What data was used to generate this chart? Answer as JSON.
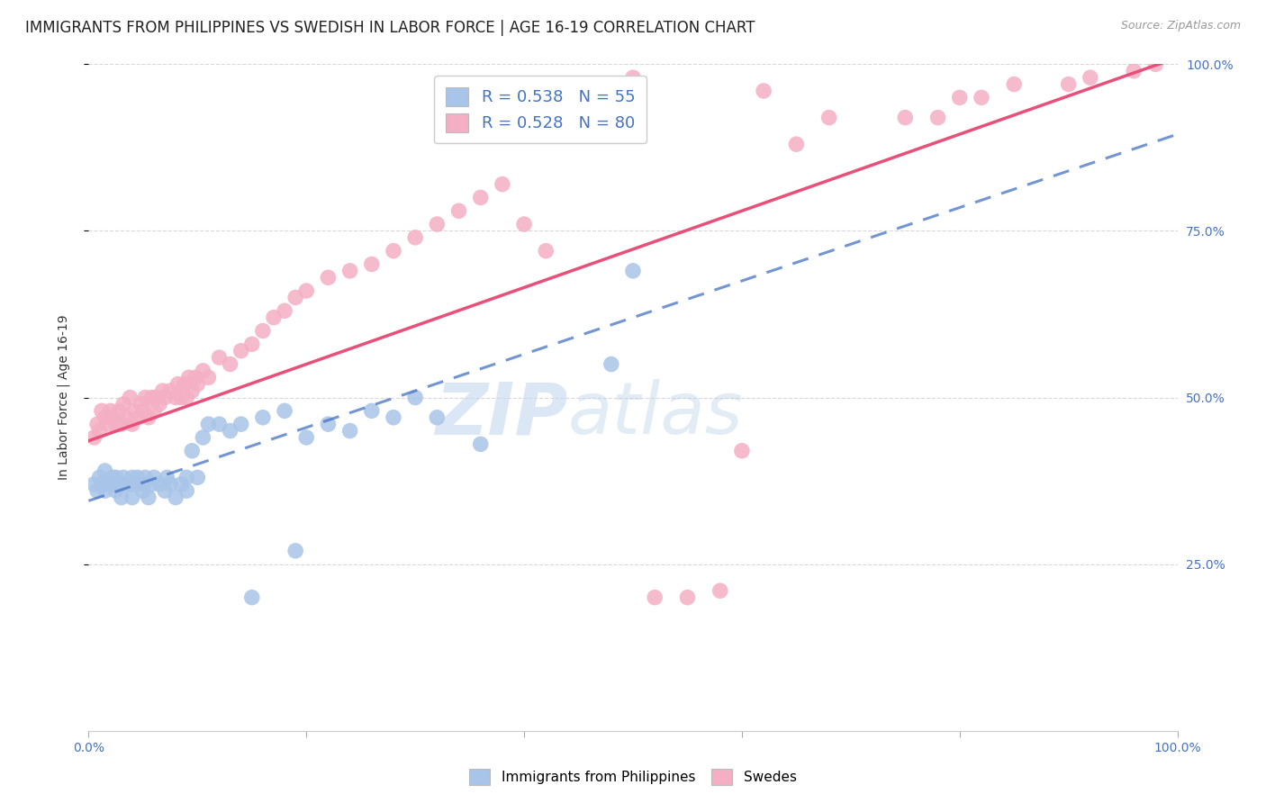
{
  "title": "IMMIGRANTS FROM PHILIPPINES VS SWEDISH IN LABOR FORCE | AGE 16-19 CORRELATION CHART",
  "source": "Source: ZipAtlas.com",
  "ylabel": "In Labor Force | Age 16-19",
  "xlim": [
    0.0,
    1.0
  ],
  "ylim": [
    0.0,
    1.0
  ],
  "xticks": [
    0.0,
    0.2,
    0.4,
    0.6,
    0.8,
    1.0
  ],
  "yticks": [
    0.25,
    0.5,
    0.75,
    1.0
  ],
  "xticklabels": [
    "0.0%",
    "",
    "",
    "",
    "",
    "100.0%"
  ],
  "yticklabels_right": [
    "25.0%",
    "50.0%",
    "75.0%",
    "100.0%"
  ],
  "blue_r": 0.538,
  "blue_n": 55,
  "pink_r": 0.528,
  "pink_n": 80,
  "blue_color": "#a8c4e8",
  "pink_color": "#f4afc4",
  "blue_line_color": "#4472c4",
  "pink_line_color": "#e8507a",
  "watermark_zip": "ZIP",
  "watermark_atlas": "atlas",
  "background_color": "#ffffff",
  "grid_color": "#d8d8d8",
  "title_fontsize": 12,
  "axis_label_fontsize": 10,
  "tick_fontsize": 10,
  "legend_fontsize": 13,
  "blue_scatter_x": [
    0.005,
    0.008,
    0.01,
    0.012,
    0.015,
    0.015,
    0.018,
    0.02,
    0.022,
    0.025,
    0.025,
    0.028,
    0.03,
    0.032,
    0.035,
    0.038,
    0.04,
    0.04,
    0.042,
    0.045,
    0.05,
    0.05,
    0.052,
    0.055,
    0.058,
    0.06,
    0.065,
    0.07,
    0.072,
    0.075,
    0.08,
    0.085,
    0.09,
    0.09,
    0.095,
    0.1,
    0.105,
    0.11,
    0.12,
    0.13,
    0.14,
    0.15,
    0.16,
    0.18,
    0.19,
    0.2,
    0.22,
    0.24,
    0.26,
    0.28,
    0.3,
    0.32,
    0.36,
    0.48,
    0.5
  ],
  "blue_scatter_y": [
    0.37,
    0.36,
    0.38,
    0.37,
    0.36,
    0.39,
    0.37,
    0.37,
    0.38,
    0.36,
    0.38,
    0.37,
    0.35,
    0.38,
    0.37,
    0.37,
    0.35,
    0.38,
    0.37,
    0.38,
    0.37,
    0.36,
    0.38,
    0.35,
    0.37,
    0.38,
    0.37,
    0.36,
    0.38,
    0.37,
    0.35,
    0.37,
    0.36,
    0.38,
    0.42,
    0.38,
    0.44,
    0.46,
    0.46,
    0.45,
    0.46,
    0.2,
    0.47,
    0.48,
    0.27,
    0.44,
    0.46,
    0.45,
    0.48,
    0.47,
    0.5,
    0.47,
    0.43,
    0.55,
    0.69
  ],
  "pink_scatter_x": [
    0.005,
    0.008,
    0.01,
    0.012,
    0.015,
    0.018,
    0.02,
    0.022,
    0.025,
    0.028,
    0.03,
    0.032,
    0.035,
    0.038,
    0.04,
    0.042,
    0.045,
    0.048,
    0.05,
    0.052,
    0.055,
    0.058,
    0.06,
    0.062,
    0.065,
    0.068,
    0.07,
    0.075,
    0.08,
    0.082,
    0.085,
    0.088,
    0.09,
    0.092,
    0.095,
    0.098,
    0.1,
    0.105,
    0.11,
    0.12,
    0.13,
    0.14,
    0.15,
    0.16,
    0.17,
    0.18,
    0.19,
    0.2,
    0.22,
    0.24,
    0.26,
    0.28,
    0.3,
    0.32,
    0.34,
    0.36,
    0.38,
    0.4,
    0.42,
    0.44,
    0.45,
    0.46,
    0.48,
    0.5,
    0.52,
    0.55,
    0.58,
    0.6,
    0.62,
    0.65,
    0.68,
    0.75,
    0.78,
    0.8,
    0.82,
    0.85,
    0.9,
    0.92,
    0.96,
    0.98
  ],
  "pink_scatter_y": [
    0.44,
    0.46,
    0.45,
    0.48,
    0.47,
    0.46,
    0.48,
    0.47,
    0.46,
    0.48,
    0.46,
    0.49,
    0.47,
    0.5,
    0.46,
    0.48,
    0.47,
    0.49,
    0.48,
    0.5,
    0.47,
    0.5,
    0.48,
    0.5,
    0.49,
    0.51,
    0.5,
    0.51,
    0.5,
    0.52,
    0.5,
    0.52,
    0.5,
    0.53,
    0.51,
    0.53,
    0.52,
    0.54,
    0.53,
    0.56,
    0.55,
    0.57,
    0.58,
    0.6,
    0.62,
    0.63,
    0.65,
    0.66,
    0.68,
    0.69,
    0.7,
    0.72,
    0.74,
    0.76,
    0.78,
    0.8,
    0.82,
    0.76,
    0.72,
    0.92,
    0.92,
    0.94,
    0.96,
    0.98,
    0.2,
    0.2,
    0.21,
    0.42,
    0.96,
    0.88,
    0.92,
    0.92,
    0.92,
    0.95,
    0.95,
    0.97,
    0.97,
    0.98,
    0.99,
    1.0
  ],
  "blue_line_x0": 0.0,
  "blue_line_y0": 0.345,
  "blue_line_x1": 1.0,
  "blue_line_y1": 0.895,
  "pink_line_x0": 0.0,
  "pink_line_y0": 0.435,
  "pink_line_x1": 1.0,
  "pink_line_y1": 1.01
}
